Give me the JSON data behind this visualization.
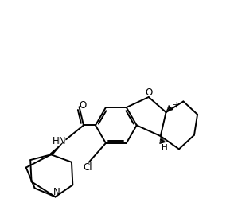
{
  "background": "#ffffff",
  "line_color": "#000000",
  "lw": 1.4,
  "figsize": [
    2.89,
    2.74
  ],
  "dpi": 100,
  "xlim": [
    0,
    10
  ],
  "ylim": [
    0,
    10
  ]
}
